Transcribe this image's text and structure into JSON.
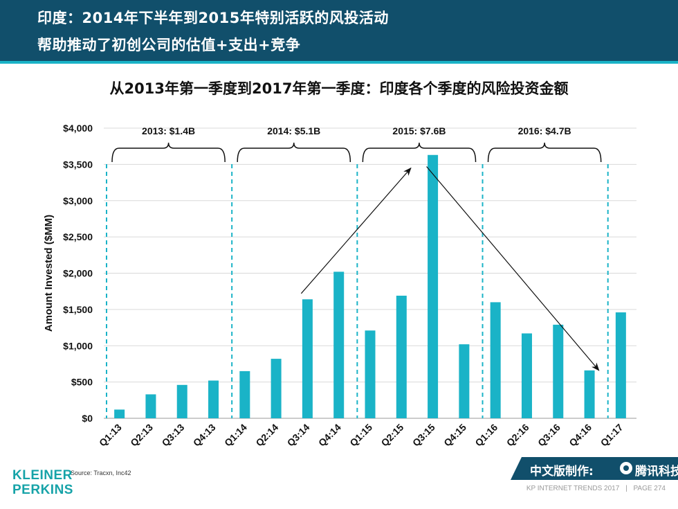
{
  "header": {
    "line1": "印度：2014年下半年到2015年特别活跃的风投活动",
    "line2": "帮助推动了初创公司的估值+支出+竞争"
  },
  "colors": {
    "header_bg": "#114f6b",
    "accent": "#1ab3c7",
    "bar": "#1ab3c7",
    "logo": "#16a3a8"
  },
  "chart_data": {
    "type": "bar",
    "title": "从2013年第一季度到2017年第一季度：印度各个季度的风险投资金额",
    "xlabel": "",
    "ylabel": "Amount Invested ($MM)",
    "ylim": [
      0,
      4000
    ],
    "yticks": [
      0,
      500,
      1000,
      1500,
      2000,
      2500,
      3000,
      3500,
      4000
    ],
    "ytick_labels": [
      "$0",
      "$500",
      "$1,000",
      "$1,500",
      "$2,000",
      "$2,500",
      "$3,000",
      "$3,500",
      "$4,000"
    ],
    "categories": [
      "Q1:13",
      "Q2:13",
      "Q3:13",
      "Q4:13",
      "Q1:14",
      "Q2:14",
      "Q3:14",
      "Q4:14",
      "Q1:15",
      "Q2:15",
      "Q3:15",
      "Q4:15",
      "Q1:16",
      "Q2:16",
      "Q3:16",
      "Q4:16",
      "Q1:17"
    ],
    "values": [
      120,
      330,
      460,
      520,
      650,
      820,
      1640,
      2020,
      1210,
      1690,
      3630,
      1020,
      1600,
      1170,
      1290,
      660,
      1460
    ],
    "year_groups": [
      {
        "label": "2013: $1.4B",
        "start": 0,
        "end": 3
      },
      {
        "label": "2014: $5.1B",
        "start": 4,
        "end": 7
      },
      {
        "label": "2015: $7.6B",
        "start": 8,
        "end": 11
      },
      {
        "label": "2016: $4.7B",
        "start": 12,
        "end": 15
      }
    ],
    "arrows": [
      {
        "from_index": 6.3,
        "from_value": 1720,
        "to_index": 9.8,
        "to_value": 3450
      },
      {
        "from_index": 10.3,
        "from_value": 3470,
        "to_index": 15.8,
        "to_value": 660
      }
    ]
  },
  "footer": {
    "source": "Source: Tracxn, Inc42",
    "logo_line1": "KLEINER",
    "logo_line2": "PERKINS",
    "report": "KP INTERNET TRENDS 2017",
    "separator": "|",
    "page": "PAGE 274",
    "credit_text": "中文版制作:",
    "credit_brand": "腾讯科技"
  }
}
